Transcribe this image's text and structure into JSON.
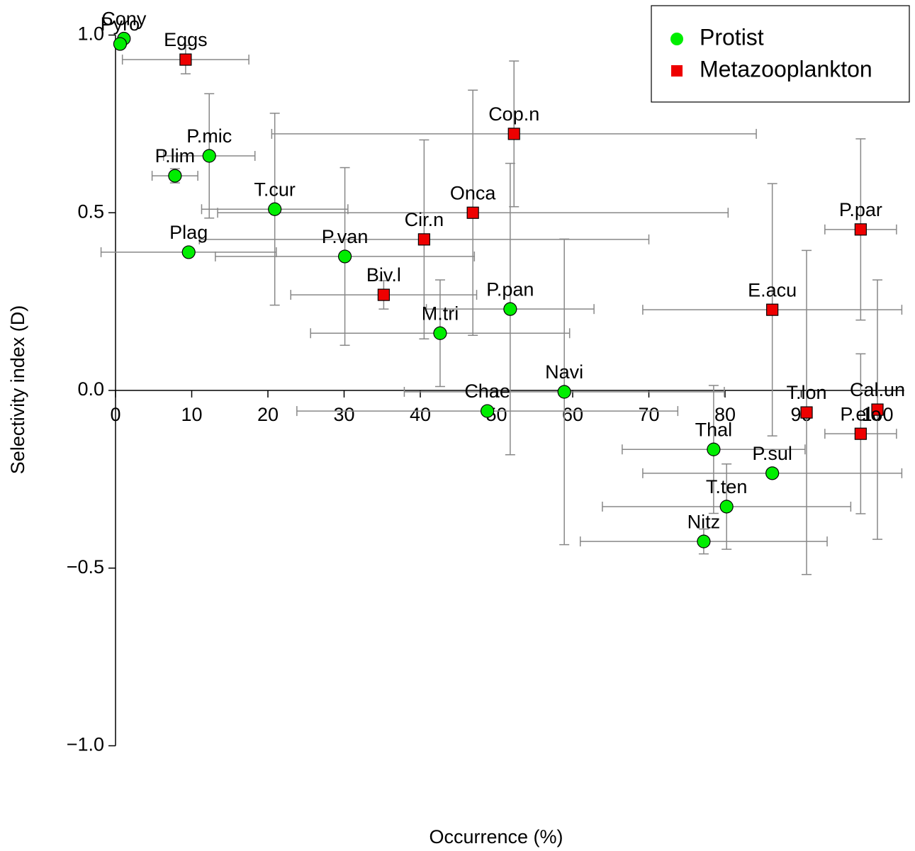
{
  "chart_data": {
    "type": "scatter",
    "xlabel": "Occurrence (%)",
    "ylabel": "Selectivity index (D)",
    "xlim": [
      0,
      103.5
    ],
    "ylim": [
      -1,
      1
    ],
    "xticks": [
      0,
      10,
      20,
      30,
      40,
      50,
      60,
      70,
      80,
      90,
      100
    ],
    "yticks": [
      {
        "value": -1,
        "label": "−1.0"
      },
      {
        "value": -0.5,
        "label": "−0.5"
      },
      {
        "value": 0,
        "label": "0.0"
      },
      {
        "value": 0.5,
        "label": "0.5"
      },
      {
        "value": 1,
        "label": "1.0"
      }
    ],
    "legend": "top-right",
    "series": [
      {
        "name": "Protist",
        "color": "#00ee00",
        "marker": "circle",
        "labels": [
          "Cony",
          "Pyro",
          "P.mic",
          "P.lim",
          "T.cur",
          "Plag",
          "P.van",
          "M.tri",
          "P.pan",
          "Navi",
          "Chae",
          "Thal",
          "P.sul",
          "T.ten",
          "Nitz"
        ],
        "x": [
          1.1,
          0.6,
          12.3,
          7.8,
          20.9,
          9.6,
          30.1,
          42.6,
          51.8,
          58.9,
          48.8,
          78.5,
          86.2,
          80.2,
          77.2
        ],
        "values": [
          0.99,
          0.975,
          0.66,
          0.604,
          0.51,
          0.389,
          0.377,
          0.161,
          0.229,
          -0.004,
          -0.058,
          -0.166,
          -0.233,
          -0.327,
          -0.425
        ],
        "xerr": [
          0.5,
          0.5,
          6,
          3,
          9.6,
          11.5,
          17,
          17,
          11,
          21,
          25,
          12,
          17,
          16.3,
          16.2
        ],
        "yerr": [
          0.01,
          0.01,
          0.175,
          0.02,
          0.27,
          0,
          0.25,
          0.15,
          0.41,
          0.43,
          0,
          0.18,
          0,
          0.12,
          0.035
        ]
      },
      {
        "name": "Metazooplankton",
        "color": "#ee0000",
        "marker": "square",
        "labels": [
          "Eggs",
          "Cop.n",
          "Onca",
          "Cir.n",
          "Biv.l",
          "E.acu",
          "P.par",
          "T.lon",
          "Cal.un",
          "P.elo"
        ],
        "x": [
          9.2,
          52.3,
          46.9,
          40.5,
          35.2,
          86.2,
          97.8,
          90.7,
          100,
          97.8
        ],
        "values": [
          0.931,
          0.722,
          0.5,
          0.425,
          0.269,
          0.227,
          0.453,
          -0.062,
          -0.054,
          -0.122
        ],
        "xerr": [
          8.3,
          31.8,
          33.5,
          29.5,
          12.2,
          17,
          4.7,
          0,
          0,
          4.7
        ],
        "yerr": [
          0.04,
          0.205,
          0.345,
          0.28,
          0.04,
          0.355,
          0.255,
          0.456,
          0.365,
          0.225
        ]
      }
    ]
  }
}
